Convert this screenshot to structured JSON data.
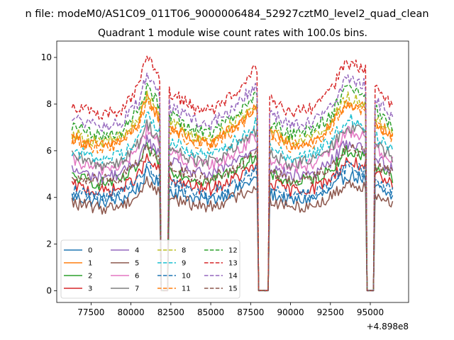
{
  "figure": {
    "suptitle": "n file: modeM0/AS1C09_011T06_9000006484_52927cztM0_level2_quad_clean",
    "title": "Quadrant 1 module wise count rates with 100.0s bins.",
    "x_offset_label": "+4.898e8"
  },
  "chart_data": {
    "type": "line",
    "title": "Quadrant 1 module wise count rates with 100.0s bins.",
    "xlabel": "",
    "ylabel": "",
    "x_offset": 489800000,
    "xlim": [
      75350,
      97400
    ],
    "ylim": [
      -0.5,
      10.7
    ],
    "xticks": [
      77500,
      80000,
      82500,
      85000,
      87500,
      90000,
      92500,
      95000
    ],
    "xtick_labels": [
      "77500",
      "80000",
      "82500",
      "85000",
      "87500",
      "90000",
      "92500",
      "95000"
    ],
    "yticks": [
      0,
      2,
      4,
      6,
      8,
      10
    ],
    "ytick_labels": [
      "0",
      "2",
      "4",
      "6",
      "8",
      "10"
    ],
    "legend_placement": "lower-left",
    "x_start": 76300,
    "x_end": 96400,
    "gaps": [
      [
        81900,
        82300
      ],
      [
        88000,
        88600
      ],
      [
        94800,
        95200
      ]
    ],
    "profile_x": [
      76300,
      78000,
      79500,
      80500,
      81000,
      81800,
      82500,
      84000,
      85000,
      86500,
      87800,
      88700,
      90000,
      91500,
      92500,
      93500,
      94600,
      95300,
      96400
    ],
    "profile_y": [
      0.8,
      0.75,
      0.78,
      0.88,
      1.0,
      0.9,
      0.85,
      0.78,
      0.77,
      0.85,
      0.95,
      0.82,
      0.76,
      0.78,
      0.85,
      0.98,
      0.95,
      0.88,
      0.8
    ],
    "series": [
      {
        "name": "0",
        "color": "#1f77b4",
        "dash": "solid",
        "level": 4.3
      },
      {
        "name": "1",
        "color": "#ff7f0e",
        "dash": "solid",
        "level": 7.0
      },
      {
        "name": "2",
        "color": "#2ca02c",
        "dash": "solid",
        "level": 5.2
      },
      {
        "name": "3",
        "color": "#d62728",
        "dash": "solid",
        "level": 4.8
      },
      {
        "name": "4",
        "color": "#9467bd",
        "dash": "solid",
        "level": 5.5
      },
      {
        "name": "5",
        "color": "#8c564b",
        "dash": "solid",
        "level": 4.0
      },
      {
        "name": "6",
        "color": "#e377c2",
        "dash": "solid",
        "level": 5.9
      },
      {
        "name": "7",
        "color": "#7f7f7f",
        "dash": "solid",
        "level": 6.1
      },
      {
        "name": "8",
        "color": "#bcbd22",
        "dash": "dashed",
        "level": 7.2
      },
      {
        "name": "9",
        "color": "#17becf",
        "dash": "dashed",
        "level": 6.4
      },
      {
        "name": "10",
        "color": "#1f77b4",
        "dash": "dashed",
        "level": 4.6
      },
      {
        "name": "11",
        "color": "#ff7f0e",
        "dash": "dashed",
        "level": 6.9
      },
      {
        "name": "12",
        "color": "#2ca02c",
        "dash": "dashed",
        "level": 7.5
      },
      {
        "name": "13",
        "color": "#d62728",
        "dash": "dashed",
        "level": 8.5
      },
      {
        "name": "14",
        "color": "#9467bd",
        "dash": "dashed",
        "level": 7.9
      },
      {
        "name": "15",
        "color": "#8c564b",
        "dash": "dashed",
        "level": 5.3
      }
    ]
  }
}
